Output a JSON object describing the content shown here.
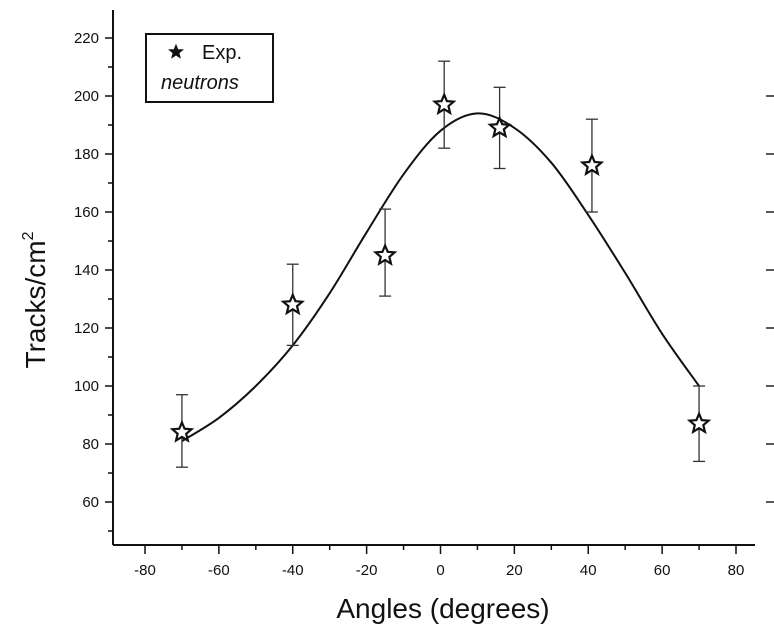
{
  "chart_data": {
    "type": "scatter",
    "title": "",
    "xlabel": "Angles (degrees)",
    "ylabel": "Tracks/cm",
    "ylabel_superscript": "2",
    "xlim": [
      -90,
      90
    ],
    "ylim": [
      45,
      222
    ],
    "x_ticks": [
      -80,
      -60,
      -40,
      -20,
      0,
      20,
      40,
      60,
      80
    ],
    "y_ticks": [
      60,
      80,
      100,
      120,
      140,
      160,
      180,
      200,
      220
    ],
    "legend": {
      "placement": "top-left",
      "marker_label": "Exp.",
      "label_line2": "neutrons"
    },
    "series": [
      {
        "name": "Exp. neutrons",
        "x": [
          -70,
          -40,
          -15,
          1,
          16,
          41,
          70
        ],
        "y": [
          84,
          128,
          145,
          197,
          189,
          176,
          87
        ],
        "err_low": [
          72,
          114,
          131,
          182,
          175,
          160,
          74
        ],
        "err_high": [
          97,
          142,
          161,
          212,
          203,
          192,
          100
        ]
      }
    ],
    "fit": {
      "type": "line",
      "x": [
        -70,
        -60,
        -50,
        -40,
        -30,
        -20,
        -10,
        0,
        10,
        20,
        30,
        40,
        50,
        60,
        70
      ],
      "y": [
        81,
        89,
        100,
        114,
        132,
        153,
        173,
        188,
        194,
        189,
        177,
        159,
        139,
        118,
        100
      ]
    }
  }
}
